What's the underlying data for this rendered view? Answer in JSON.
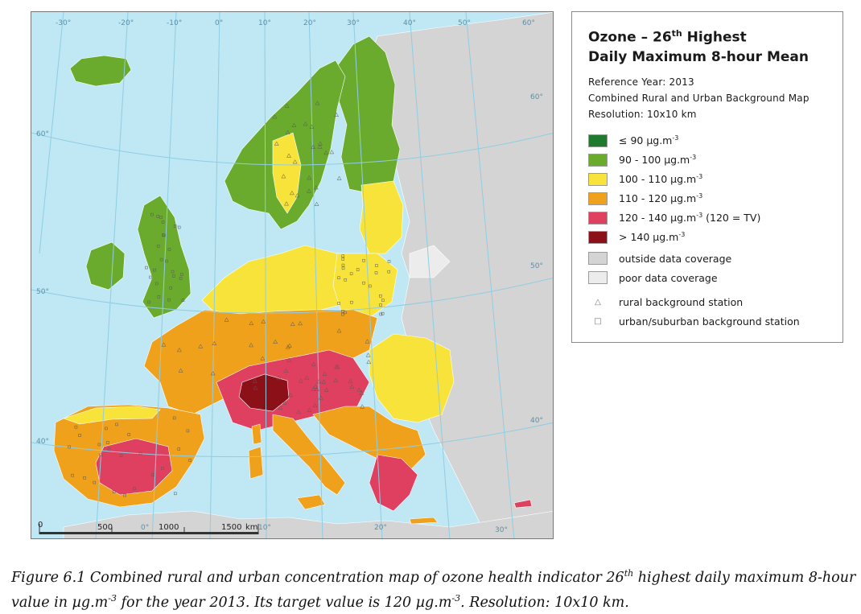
{
  "map": {
    "graticule_lon": [
      "-30°",
      "-20°",
      "-10°",
      "0°",
      "10°",
      "20°",
      "30°",
      "40°",
      "50°",
      "60°"
    ],
    "graticule_lat": [
      "60°",
      "50°",
      "40°",
      "60°",
      "50°",
      "40°"
    ],
    "scalebar": {
      "ticks": [
        "0",
        "500",
        "1000",
        "1500"
      ],
      "unit": "km"
    },
    "bottom_lon": [
      "0°",
      "10°",
      "20°",
      "30°"
    ],
    "colors": {
      "sea": "#bfe8f4",
      "outside": "#d4d4d4",
      "poor": "#ececec",
      "c90": "#1f7a2e",
      "c100": "#6aab2e",
      "c110": "#f8e33b",
      "c120": "#f0a11c",
      "c140": "#e0405f",
      "c140p": "#8c1018"
    }
  },
  "legend": {
    "title_part1": "Ozone – 26",
    "title_sup": "th",
    "title_part2": " Highest",
    "title_line2": "Daily Maximum 8-hour Mean",
    "reference_year": "Reference Year: 2013",
    "map_type": "Combined Rural and Urban Background Map",
    "resolution": "Resolution: 10x10 km",
    "classes": [
      {
        "label": "≤ 90 µg.m",
        "sup": "-3",
        "tail": "",
        "color": "#1f7a2e"
      },
      {
        "label": "90 - 100 µg.m",
        "sup": "-3",
        "tail": "",
        "color": "#6aab2e"
      },
      {
        "label": "100 - 110 µg.m",
        "sup": "-3",
        "tail": "",
        "color": "#f8e33b"
      },
      {
        "label": "110 - 120 µg.m",
        "sup": "-3",
        "tail": "",
        "color": "#f0a11c"
      },
      {
        "label": "120 - 140 µg.m",
        "sup": "-3",
        "tail": "  (120 = TV)",
        "color": "#e0405f"
      },
      {
        "label": "> 140 µg.m",
        "sup": "-3",
        "tail": "",
        "color": "#8c1018"
      }
    ],
    "outside_label": "outside data coverage",
    "poor_label": "poor data coverage",
    "rural_label": "rural background station",
    "urban_label": "urban/suburban background station",
    "rural_symbol": "△",
    "urban_symbol": "□"
  },
  "caption": {
    "p1": "Figure 6.1 Combined rural and urban concentration map of ozone health indicator 26",
    "s1": "th",
    "p2": " highest daily maximum 8-hour value in µg.m",
    "s2": "-3",
    "p3": " for the year 2013. Its target value is 120 µg.m",
    "s3": "-3",
    "p4": ". Resolution: 10x10 km."
  }
}
